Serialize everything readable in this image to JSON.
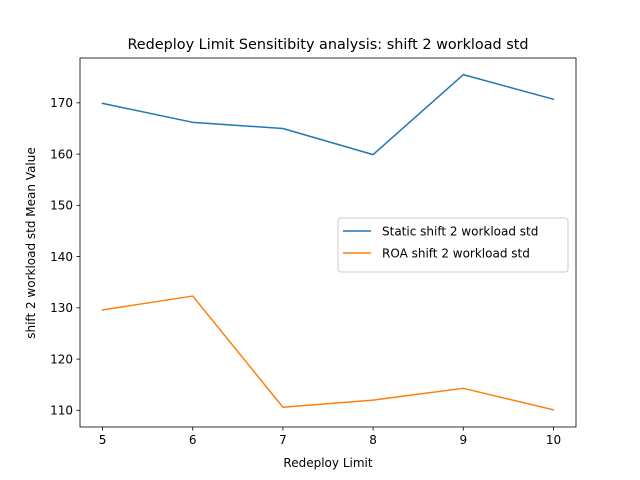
{
  "chart_data": {
    "type": "line",
    "title": "Redeploy Limit Sensitibity analysis: shift 2 workload std",
    "xlabel": "Redeploy Limit",
    "ylabel": "shift 2 workload std Mean Value",
    "x": [
      5,
      6,
      7,
      8,
      9,
      10
    ],
    "xlim": [
      4.75,
      10.25
    ],
    "ylim": [
      106.75,
      178.75
    ],
    "xticks": [
      "5",
      "6",
      "7",
      "8",
      "9",
      "10"
    ],
    "yticks": [
      "110",
      "120",
      "130",
      "140",
      "150",
      "160",
      "170"
    ],
    "grid": false,
    "legend_position": "center-right",
    "series": [
      {
        "name": "Static shift 2 workload std",
        "color": "#1f77b4",
        "values": [
          169.9,
          166.2,
          165.0,
          159.9,
          175.5,
          170.7
        ]
      },
      {
        "name": "ROA shift 2 workload std",
        "color": "#ff7f0e",
        "values": [
          129.6,
          132.3,
          110.6,
          112.0,
          114.3,
          110.1
        ]
      }
    ]
  }
}
